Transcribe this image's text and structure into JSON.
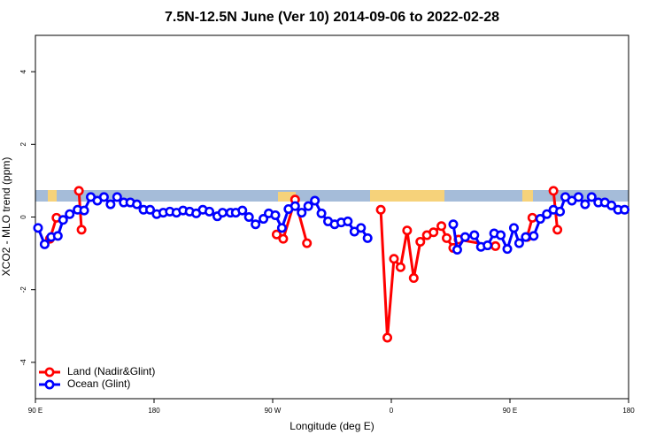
{
  "chart_data": {
    "type": "line",
    "title": "7.5N-12.5N June (Ver 10)   2014-09-06 to 2022-02-28",
    "x_label": "Longitude (deg E)",
    "y_label": "XCO2 - MLO trend (ppm)",
    "xlim": [
      90,
      540
    ],
    "xticks": [
      {
        "value": 90,
        "label": "90 E"
      },
      180,
      {
        "value": 270,
        "label": "90 W"
      },
      {
        "value": 360,
        "label": "0"
      },
      {
        "value": 450,
        "label": "90 E"
      },
      {
        "value": 540,
        "label": "180"
      }
    ],
    "ylim": [
      -5,
      5
    ],
    "yticks": [
      -4,
      -2,
      0,
      2,
      4
    ],
    "legend": "bottom-left",
    "series": [
      {
        "name": "Land (Nadir&Glint)",
        "color": "#ff0000",
        "x": [
          101,
          106,
          115,
          123,
          125,
          200,
          273,
          278,
          287,
          296,
          320,
          352,
          357,
          362,
          367,
          372,
          377,
          382,
          387,
          392,
          398,
          402,
          407,
          411,
          439,
          450,
          463,
          467,
          475,
          483,
          486
        ],
        "values": [
          -0.6,
          -0.02,
          null,
          0.72,
          -0.35,
          null,
          -0.48,
          -0.6,
          0.48,
          -0.72,
          null,
          0.2,
          -3.32,
          -1.15,
          -1.38,
          -0.37,
          -1.68,
          -0.68,
          -0.5,
          -0.42,
          -0.25,
          -0.58,
          -0.85,
          -0.62,
          -0.8,
          null,
          -0.55,
          -0.02,
          null,
          0.72,
          -0.35
        ]
      },
      {
        "name": "Ocean (Glint)",
        "color": "#0000ff",
        "x": [
          92,
          97,
          102,
          107,
          111,
          116,
          122,
          127,
          132,
          137,
          142,
          147,
          152,
          157,
          162,
          167,
          172,
          177,
          182,
          187,
          192,
          197,
          202,
          207,
          212,
          217,
          222,
          228,
          232,
          238,
          242,
          247,
          252,
          257,
          263,
          267,
          272,
          277,
          282,
          287,
          292,
          297,
          302,
          307,
          312,
          317,
          322,
          327,
          332,
          337,
          342,
          380,
          407,
          410,
          416,
          423,
          428,
          433,
          438,
          443,
          448,
          453,
          457,
          462,
          468,
          473,
          478,
          483,
          488,
          492,
          497,
          502,
          507,
          512,
          517,
          522,
          527,
          532,
          537
        ],
        "values": [
          -0.3,
          -0.75,
          -0.55,
          -0.52,
          -0.08,
          0.08,
          0.2,
          0.18,
          0.55,
          0.45,
          0.55,
          0.35,
          0.55,
          0.4,
          0.4,
          0.35,
          0.2,
          0.2,
          0.08,
          0.12,
          0.15,
          0.12,
          0.18,
          0.15,
          0.1,
          0.2,
          0.15,
          0.02,
          0.12,
          0.12,
          0.12,
          0.18,
          0,
          -0.2,
          -0.05,
          0.1,
          0.05,
          -0.3,
          0.22,
          0.3,
          0.12,
          0.3,
          0.45,
          0.1,
          -0.12,
          -0.2,
          -0.15,
          -0.12,
          -0.4,
          -0.3,
          -0.58,
          null,
          -0.2,
          -0.9,
          -0.55,
          -0.5,
          -0.82,
          -0.78,
          -0.45,
          -0.5,
          -0.88,
          -0.3,
          -0.72,
          -0.55,
          -0.52,
          -0.05,
          0.08,
          0.2,
          0.15,
          0.55,
          0.45,
          0.55,
          0.35,
          0.55,
          0.4,
          0.4,
          0.32,
          0.2,
          0.2
        ]
      }
    ]
  }
}
